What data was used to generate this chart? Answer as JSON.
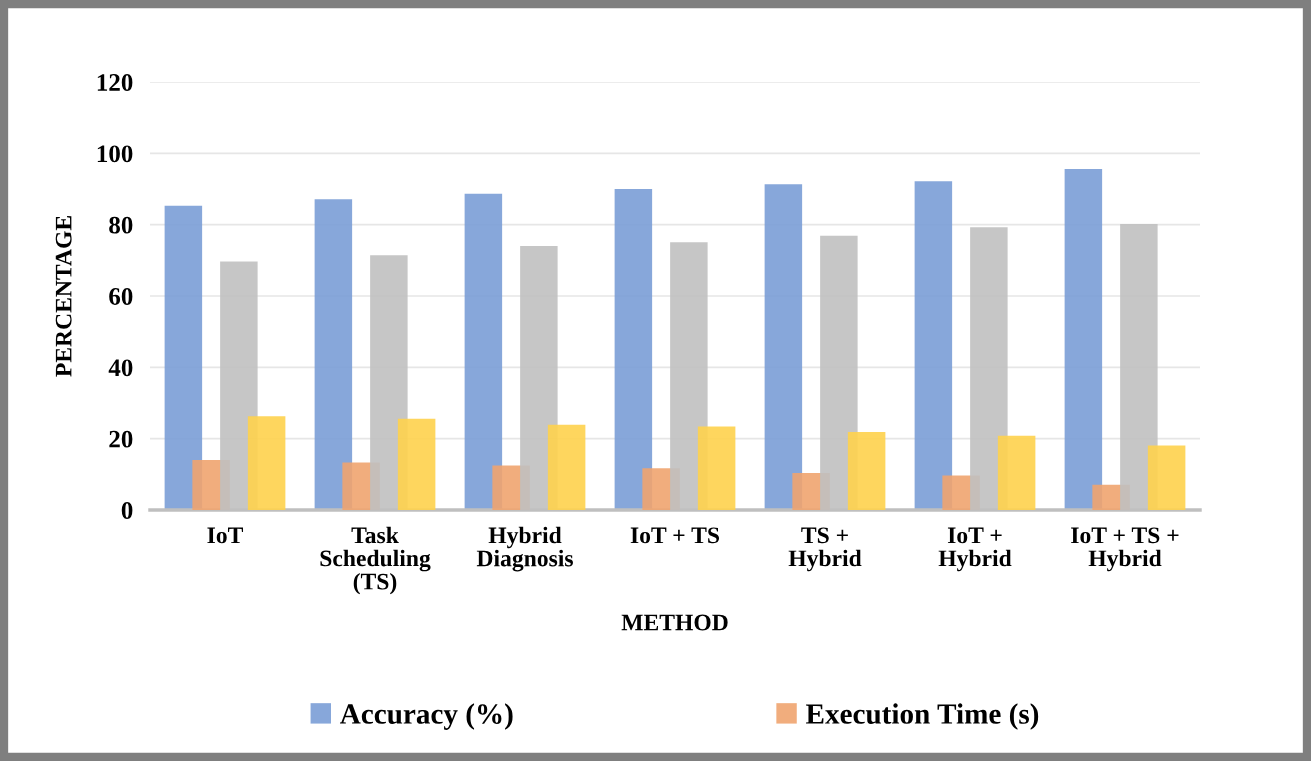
{
  "chart_data": {
    "type": "bar",
    "xlabel": "METHOD",
    "ylabel": "PERCENTAGE",
    "categories": [
      "IoT",
      "Task\nScheduling\n(TS)",
      "Hybrid\nDiagnosis",
      "IoT + TS",
      "TS +\nHybrid",
      "IoT +\nHybrid",
      "IoT + TS +\nHybrid"
    ],
    "series": [
      {
        "name": "Accuracy (%)",
        "color": "#7a9dd6",
        "values": [
          85.3,
          87.1,
          88.7,
          90.0,
          91.3,
          92.2,
          95.6
        ]
      },
      {
        "name": "Execution Time (s)",
        "color": "#f0a46f",
        "values": [
          14.0,
          13.3,
          12.5,
          11.7,
          10.4,
          9.7,
          7.1
        ]
      },
      {
        "color": "#c0c0c0",
        "values": [
          69.7,
          71.4,
          74.0,
          75.1,
          76.9,
          79.3,
          80.2
        ]
      },
      {
        "color": "#fed24c",
        "values": [
          26.3,
          25.6,
          23.9,
          23.4,
          21.9,
          20.8,
          18.1
        ]
      }
    ],
    "ylim": [
      0,
      120
    ],
    "yticks": [
      0,
      20,
      40,
      60,
      80,
      100,
      120
    ],
    "grid": "y",
    "legend": "bottom"
  }
}
